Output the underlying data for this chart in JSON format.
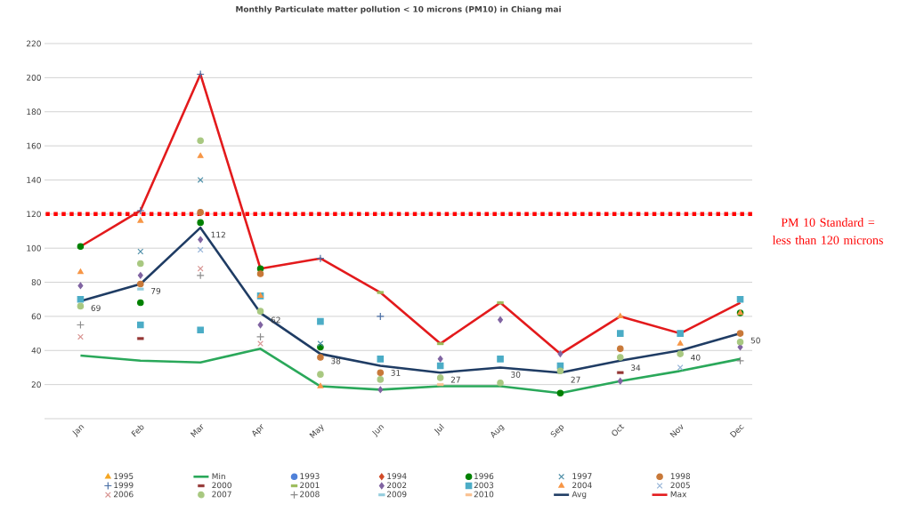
{
  "chart_data": {
    "type": "line",
    "title": "Monthly Particulate matter pollution < 10 microns (PM10) in Chiang mai",
    "categories": [
      "Jan",
      "Feb",
      "Mar",
      "Apr",
      "May",
      "Jun",
      "Jul",
      "Aug",
      "Sep",
      "Oct",
      "Nov",
      "Dec"
    ],
    "ylim": [
      0,
      220
    ],
    "yticks": [
      20,
      40,
      60,
      80,
      100,
      120,
      140,
      160,
      180,
      200,
      220
    ],
    "grid": "y",
    "legend": "bottom",
    "ref_lines": [
      {
        "axis": "y",
        "value": 120,
        "label": "PM 10 Standard = less than 120 microns",
        "color": "#ff0000",
        "line_style": "dotted"
      }
    ],
    "series": [
      {
        "name": "1995",
        "type": "scatter",
        "marker": "triangle",
        "color": "#f5a623",
        "values": [
          null,
          null,
          null,
          null,
          null,
          null,
          null,
          null,
          null,
          null,
          null,
          null
        ]
      },
      {
        "name": "Min",
        "type": "line",
        "marker": "none",
        "color": "#2aa85a",
        "values": [
          37,
          34,
          33,
          41,
          19,
          17,
          19,
          19,
          15,
          22,
          28,
          35
        ]
      },
      {
        "name": "1993",
        "type": "scatter",
        "marker": "circle",
        "color": "#4f81d9",
        "values": [
          null,
          null,
          null,
          null,
          null,
          null,
          null,
          null,
          null,
          null,
          null,
          null
        ]
      },
      {
        "name": "1994",
        "type": "scatter",
        "marker": "diamond",
        "color": "#d24b28",
        "values": [
          null,
          null,
          null,
          null,
          null,
          null,
          null,
          null,
          null,
          null,
          null,
          null
        ]
      },
      {
        "name": "1996",
        "type": "scatter",
        "marker": "circle",
        "color": "#008000",
        "values": [
          101,
          68,
          115,
          88,
          42,
          null,
          null,
          null,
          15,
          null,
          null,
          62
        ]
      },
      {
        "name": "1997",
        "type": "scatter",
        "marker": "cross",
        "color": "#4f8fa8",
        "values": [
          null,
          98,
          140,
          null,
          44,
          null,
          null,
          null,
          null,
          null,
          null,
          null
        ]
      },
      {
        "name": "1998",
        "type": "scatter",
        "marker": "circle",
        "color": "#c87838",
        "values": [
          null,
          79,
          121,
          85,
          36,
          27,
          null,
          null,
          null,
          41,
          null,
          50
        ]
      },
      {
        "name": "1999",
        "type": "scatter",
        "marker": "plus",
        "color": "#4a6fa5",
        "values": [
          null,
          122,
          202,
          null,
          94,
          60,
          null,
          null,
          null,
          null,
          null,
          null
        ]
      },
      {
        "name": "2000",
        "type": "scatter",
        "color": "#943634",
        "values": [
          null,
          47,
          null,
          null,
          null,
          null,
          null,
          null,
          null,
          27,
          null,
          null
        ]
      },
      {
        "name": "2001",
        "type": "scatter",
        "color": "#9bbb59",
        "values": [
          null,
          null,
          null,
          null,
          null,
          74,
          44,
          68,
          null,
          null,
          null,
          null
        ]
      },
      {
        "name": "2002",
        "type": "scatter",
        "marker": "diamond",
        "color": "#8064a2",
        "values": [
          78,
          84,
          105,
          55,
          null,
          17,
          35,
          58,
          38,
          22,
          null,
          42
        ]
      },
      {
        "name": "2003",
        "type": "scatter",
        "marker": "square",
        "color": "#4bacc6",
        "values": [
          70,
          55,
          52,
          72,
          57,
          35,
          31,
          35,
          31,
          50,
          50,
          70
        ]
      },
      {
        "name": "2004",
        "type": "scatter",
        "marker": "triangle",
        "color": "#f79646",
        "values": [
          86,
          116,
          154,
          72,
          19,
          null,
          null,
          null,
          null,
          60,
          44,
          62
        ]
      },
      {
        "name": "2005",
        "type": "scatter",
        "marker": "cross",
        "color": "#95b3d7",
        "values": [
          null,
          null,
          99,
          null,
          null,
          null,
          null,
          null,
          null,
          null,
          30,
          null
        ]
      },
      {
        "name": "2006",
        "type": "scatter",
        "marker": "cross",
        "color": "#d99694",
        "values": [
          48,
          null,
          88,
          44,
          null,
          null,
          null,
          null,
          null,
          null,
          null,
          null
        ]
      },
      {
        "name": "2007",
        "type": "scatter",
        "marker": "circle",
        "color": "#a8c880",
        "values": [
          66,
          91,
          163,
          63,
          26,
          23,
          24,
          21,
          28,
          36,
          38,
          45
        ]
      },
      {
        "name": "2008",
        "type": "scatter",
        "marker": "plus",
        "color": "#8c8c8c",
        "values": [
          55,
          null,
          84,
          48,
          null,
          null,
          null,
          null,
          null,
          null,
          null,
          34
        ]
      },
      {
        "name": "2009",
        "type": "scatter",
        "color": "#93cddd",
        "values": [
          null,
          76,
          null,
          null,
          null,
          null,
          null,
          null,
          null,
          null,
          null,
          null
        ]
      },
      {
        "name": "2010",
        "type": "scatter",
        "color": "#fac090",
        "values": [
          null,
          null,
          null,
          null,
          null,
          null,
          20,
          null,
          null,
          null,
          null,
          null
        ]
      },
      {
        "name": "Avg",
        "type": "line",
        "marker": "none",
        "color": "#1f3c64",
        "values": [
          69,
          79,
          112,
          62,
          38,
          31,
          27,
          30,
          27,
          34,
          40,
          50
        ],
        "value_labels": [
          "69",
          "79",
          "112",
          "62",
          "38",
          "31",
          "27",
          "30",
          "27",
          "34",
          "40",
          "50"
        ]
      },
      {
        "name": "Max",
        "type": "line",
        "marker": "none",
        "color": "#e31a1c",
        "values": [
          101,
          122,
          202,
          88,
          94,
          74,
          44,
          68,
          38,
          60,
          50,
          68
        ]
      }
    ]
  }
}
